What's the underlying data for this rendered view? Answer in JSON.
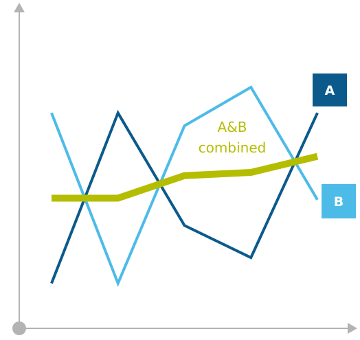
{
  "chart_data": {
    "type": "line",
    "categories": [
      null,
      null,
      null,
      null,
      null
    ],
    "series": [
      {
        "name": "A",
        "color": "#0b5a8b",
        "values": [
          14,
          67,
          32,
          22,
          67
        ]
      },
      {
        "name": "B",
        "color": "#4dbbe8",
        "values": [
          67,
          14,
          63,
          75,
          40
        ]
      },
      {
        "name": "A&B combined",
        "color": "#b5bd00",
        "values": [
          40.5,
          40.5,
          47.5,
          48.5,
          53.5
        ]
      }
    ],
    "ylim": [
      0,
      100
    ]
  }
}
